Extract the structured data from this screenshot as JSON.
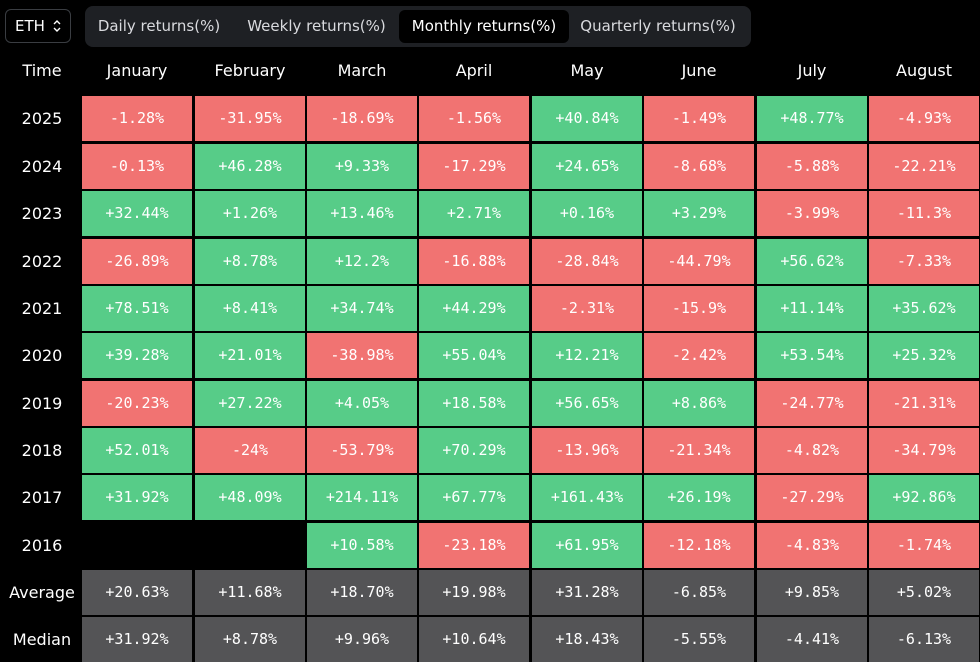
{
  "asset_selector": {
    "value": "ETH",
    "icon": "updown-chevron-icon"
  },
  "tabs": [
    {
      "label": "Daily returns(%)",
      "active": false
    },
    {
      "label": "Weekly returns(%)",
      "active": false
    },
    {
      "label": "Monthly returns(%)",
      "active": true
    },
    {
      "label": "Quarterly returns(%)",
      "active": false
    }
  ],
  "table": {
    "corner_label": "Time",
    "columns": [
      "January",
      "February",
      "March",
      "April",
      "May",
      "June",
      "July",
      "August"
    ],
    "colors": {
      "positive": "#57cc88",
      "negative": "#f17372",
      "stat": "#545456"
    },
    "rows": [
      {
        "label": "2025",
        "values": [
          "-1.28%",
          "-31.95%",
          "-18.69%",
          "-1.56%",
          "+40.84%",
          "-1.49%",
          "+48.77%",
          "-4.93%"
        ]
      },
      {
        "label": "2024",
        "values": [
          "-0.13%",
          "+46.28%",
          "+9.33%",
          "-17.29%",
          "+24.65%",
          "-8.68%",
          "-5.88%",
          "-22.21%"
        ]
      },
      {
        "label": "2023",
        "values": [
          "+32.44%",
          "+1.26%",
          "+13.46%",
          "+2.71%",
          "+0.16%",
          "+3.29%",
          "-3.99%",
          "-11.3%"
        ]
      },
      {
        "label": "2022",
        "values": [
          "-26.89%",
          "+8.78%",
          "+12.2%",
          "-16.88%",
          "-28.84%",
          "-44.79%",
          "+56.62%",
          "-7.33%"
        ]
      },
      {
        "label": "2021",
        "values": [
          "+78.51%",
          "+8.41%",
          "+34.74%",
          "+44.29%",
          "-2.31%",
          "-15.9%",
          "+11.14%",
          "+35.62%"
        ]
      },
      {
        "label": "2020",
        "values": [
          "+39.28%",
          "+21.01%",
          "-38.98%",
          "+55.04%",
          "+12.21%",
          "-2.42%",
          "+53.54%",
          "+25.32%"
        ]
      },
      {
        "label": "2019",
        "values": [
          "-20.23%",
          "+27.22%",
          "+4.05%",
          "+18.58%",
          "+56.65%",
          "+8.86%",
          "-24.77%",
          "-21.31%"
        ]
      },
      {
        "label": "2018",
        "values": [
          "+52.01%",
          "-24%",
          "-53.79%",
          "+70.29%",
          "-13.96%",
          "-21.34%",
          "-4.82%",
          "-34.79%"
        ]
      },
      {
        "label": "2017",
        "values": [
          "+31.92%",
          "+48.09%",
          "+214.11%",
          "+67.77%",
          "+161.43%",
          "+26.19%",
          "-27.29%",
          "+92.86%"
        ]
      },
      {
        "label": "2016",
        "values": [
          null,
          null,
          "+10.58%",
          "-23.18%",
          "+61.95%",
          "-12.18%",
          "-4.83%",
          "-1.74%"
        ]
      },
      {
        "label": "Average",
        "stat": true,
        "values": [
          "+20.63%",
          "+11.68%",
          "+18.70%",
          "+19.98%",
          "+31.28%",
          "-6.85%",
          "+9.85%",
          "+5.02%"
        ]
      },
      {
        "label": "Median",
        "stat": true,
        "values": [
          "+31.92%",
          "+8.78%",
          "+9.96%",
          "+10.64%",
          "+18.43%",
          "-5.55%",
          "-4.41%",
          "-6.13%"
        ]
      }
    ]
  }
}
